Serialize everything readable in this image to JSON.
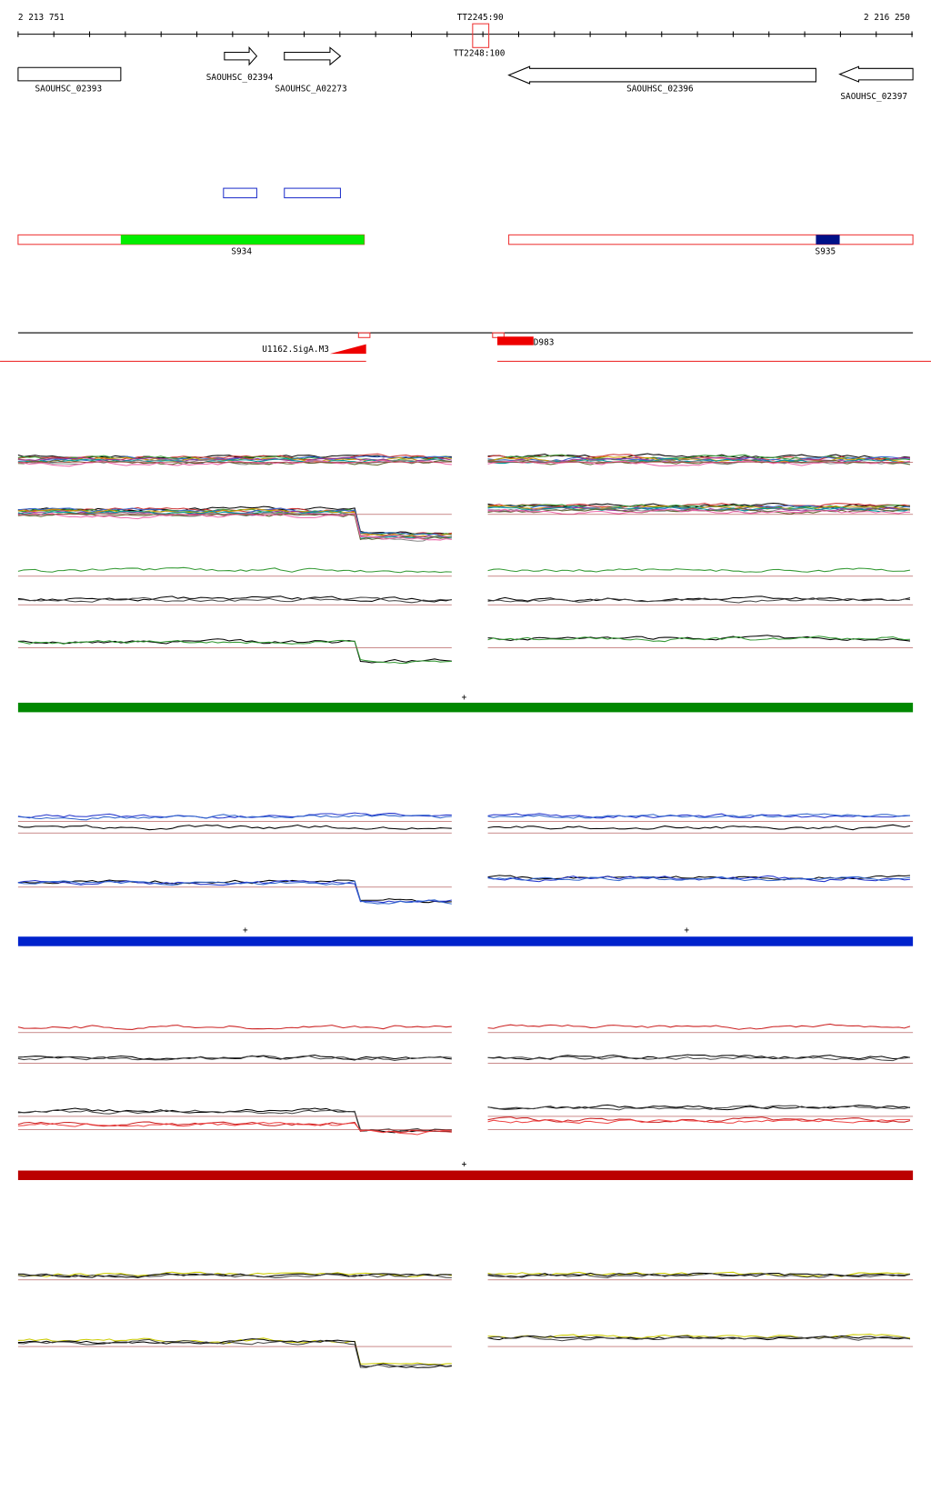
{
  "ruler": {
    "start": "2 213 751",
    "end": "2 216 250",
    "markers": [
      "TT2245:90",
      "TT2248:100"
    ]
  },
  "genes": [
    "SAOUHSC_02393",
    "SAOUHSC_02394",
    "SAOUHSC_A02273",
    "SAOUHSC_02396",
    "SAOUHSC_02397"
  ],
  "segments": [
    "S934",
    "S935"
  ],
  "features": [
    "U1162.SigA.M3",
    "D983"
  ],
  "strand_marks": [
    "+",
    "+",
    "+",
    "+"
  ]
}
